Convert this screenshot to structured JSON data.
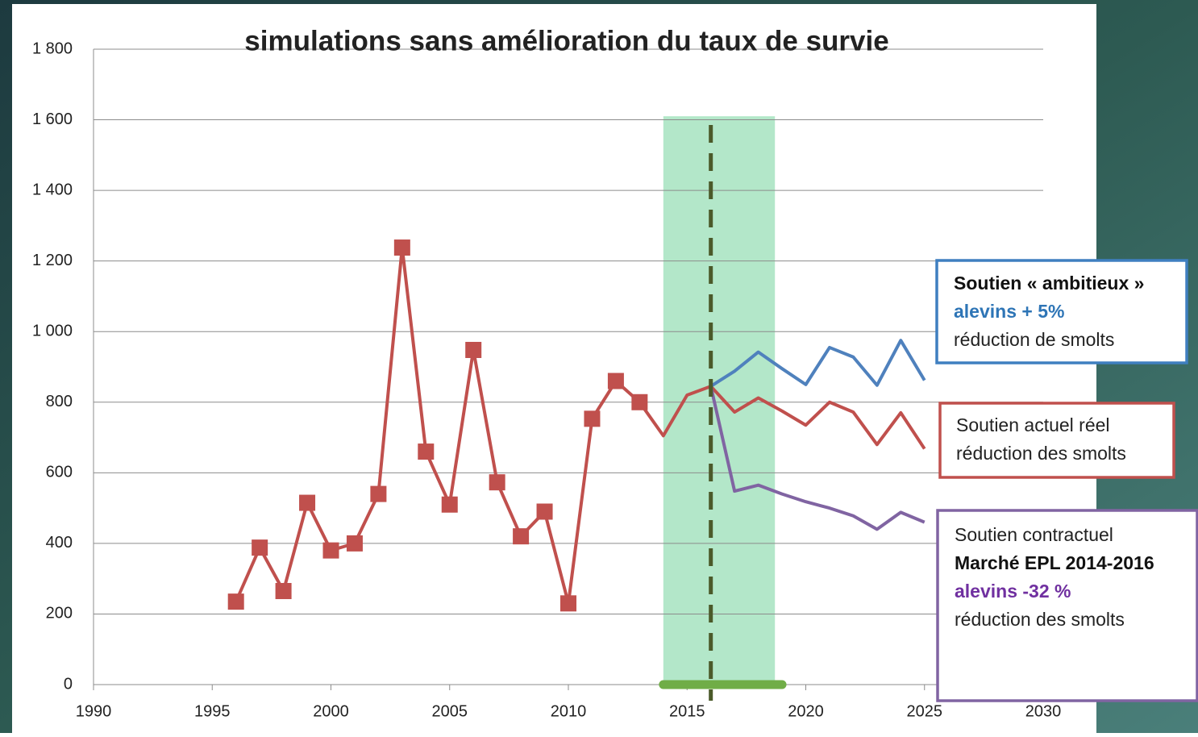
{
  "chart_data": {
    "type": "line",
    "title": "simulations sans amélioration du taux de survie",
    "x": [
      1996,
      1997,
      1998,
      1999,
      2000,
      2001,
      2002,
      2003,
      2004,
      2005,
      2006,
      2007,
      2008,
      2009,
      2010,
      2011,
      2012,
      2013,
      2014,
      2015,
      2016,
      2017,
      2018,
      2019,
      2020,
      2021,
      2022,
      2023,
      2024,
      2025
    ],
    "series": [
      {
        "color": "#c0504d",
        "marker": "square",
        "values": [
          235,
          388,
          265,
          515,
          380,
          400,
          540,
          1238,
          660,
          510,
          948,
          573,
          420,
          490,
          230,
          753,
          860,
          800,
          null,
          null,
          null,
          null,
          null,
          null,
          null,
          null,
          null,
          null,
          null,
          null
        ]
      },
      {
        "color": "#c0504d",
        "values": [
          null,
          null,
          null,
          null,
          null,
          null,
          null,
          null,
          null,
          null,
          null,
          null,
          null,
          null,
          null,
          null,
          null,
          800,
          705,
          820,
          845,
          772,
          812,
          775,
          735,
          800,
          772,
          680,
          770,
          668
        ]
      },
      {
        "color": "#4f81bd",
        "values": [
          null,
          null,
          null,
          null,
          null,
          null,
          null,
          null,
          null,
          null,
          null,
          null,
          null,
          null,
          null,
          null,
          null,
          null,
          null,
          null,
          845,
          888,
          942,
          895,
          850,
          955,
          928,
          848,
          975,
          862
        ]
      },
      {
        "color": "#8064a2",
        "values": [
          null,
          null,
          null,
          null,
          null,
          null,
          null,
          null,
          null,
          null,
          null,
          null,
          null,
          null,
          null,
          null,
          null,
          null,
          null,
          null,
          845,
          548,
          565,
          540,
          518,
          500,
          478,
          440,
          488,
          460
        ]
      }
    ],
    "xlim": [
      1990,
      2030
    ],
    "xticks": [
      1990,
      1995,
      2000,
      2005,
      2010,
      2015,
      2020,
      2025,
      2030
    ],
    "ylim": [
      0,
      1800
    ],
    "yticks": [
      0,
      200,
      400,
      600,
      800,
      {
        "value": 1000,
        "label": "1 000"
      },
      {
        "value": 1200,
        "label": "1 200"
      },
      {
        "value": 1400,
        "label": "1 400"
      },
      {
        "value": 1600,
        "label": "1 600"
      },
      {
        "value": 1800,
        "label": "1 800"
      }
    ],
    "grid": true,
    "shaded_region": {
      "x": [
        2014,
        2018.7
      ],
      "y": [
        0,
        1610
      ],
      "color": "#a6e3bf"
    },
    "vline": {
      "x": 2016,
      "color": "#4b5a2a"
    },
    "bottom_bar": {
      "x": [
        2014,
        2019
      ],
      "color": "#70ad47"
    },
    "annotations": [
      {
        "color": "#3f7fc0",
        "lines": [
          {
            "text": "Soutien « ambitieux »",
            "bold": true,
            "color": "#111"
          },
          {
            "text": "alevins + 5%",
            "bold": true,
            "color": "#2e75b6"
          },
          {
            "text": "réduction de smolts",
            "bold": false,
            "color": "#222"
          }
        ]
      },
      {
        "color": "#c0504d",
        "lines": [
          {
            "text": "Soutien actuel réel",
            "bold": false,
            "color": "#222"
          },
          {
            "text": "réduction des smolts",
            "bold": false,
            "color": "#222"
          }
        ]
      },
      {
        "color": "#8064a2",
        "lines": [
          {
            "text": "Soutien contractuel",
            "bold": false,
            "color": "#222"
          },
          {
            "text": "Marché EPL 2014-2016",
            "bold": true,
            "color": "#111"
          },
          {
            "text": "alevins -32 %",
            "bold": true,
            "color": "#7030a0"
          },
          {
            "text": "réduction des smolts",
            "bold": false,
            "color": "#222"
          }
        ]
      }
    ]
  }
}
